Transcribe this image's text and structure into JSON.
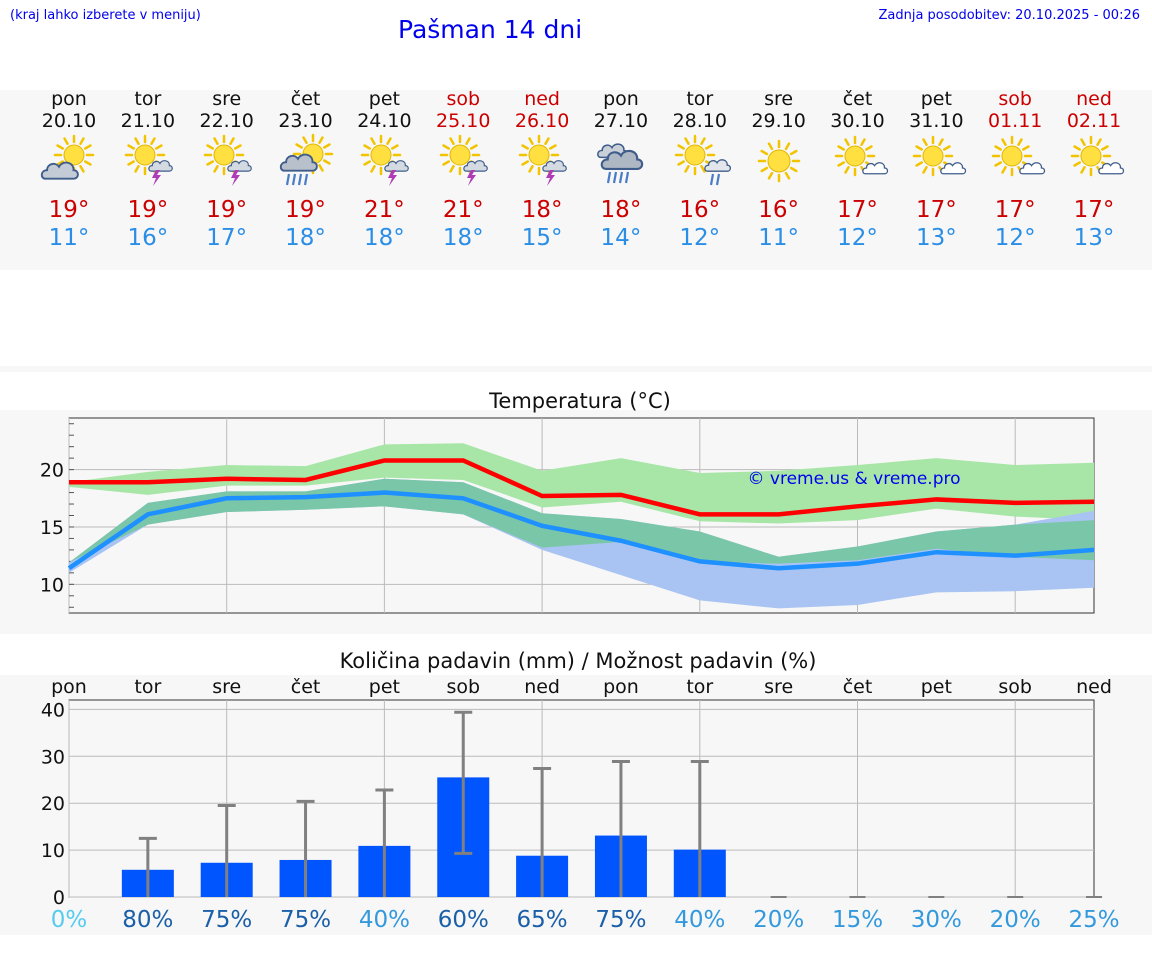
{
  "header": {
    "menu_hint": "(kraj lahko izberete v meniju)",
    "title": "Pašman 14 dni",
    "updated": "Zadnja posodobitev: 20.10.2025 - 00:26"
  },
  "days": [
    {
      "name": "pon",
      "date": "20.10",
      "weekend": false,
      "icon": "sun-cloud-icon",
      "max": "19°",
      "min": "11°"
    },
    {
      "name": "tor",
      "date": "21.10",
      "weekend": false,
      "icon": "sun-storm-icon",
      "max": "19°",
      "min": "16°"
    },
    {
      "name": "sre",
      "date": "22.10",
      "weekend": false,
      "icon": "sun-storm-icon",
      "max": "19°",
      "min": "17°"
    },
    {
      "name": "čet",
      "date": "23.10",
      "weekend": false,
      "icon": "sun-rain-heavy-icon",
      "max": "19°",
      "min": "18°"
    },
    {
      "name": "pet",
      "date": "24.10",
      "weekend": false,
      "icon": "sun-storm-icon",
      "max": "21°",
      "min": "18°"
    },
    {
      "name": "sob",
      "date": "25.10",
      "weekend": true,
      "icon": "sun-storm-icon",
      "max": "21°",
      "min": "18°"
    },
    {
      "name": "ned",
      "date": "26.10",
      "weekend": true,
      "icon": "sun-storm-icon",
      "max": "18°",
      "min": "15°"
    },
    {
      "name": "pon",
      "date": "27.10",
      "weekend": false,
      "icon": "cloud-rain-icon",
      "max": "18°",
      "min": "14°"
    },
    {
      "name": "tor",
      "date": "28.10",
      "weekend": false,
      "icon": "sun-cloud-rain-icon",
      "max": "16°",
      "min": "12°"
    },
    {
      "name": "sre",
      "date": "29.10",
      "weekend": false,
      "icon": "sun-icon",
      "max": "16°",
      "min": "11°"
    },
    {
      "name": "čet",
      "date": "30.10",
      "weekend": false,
      "icon": "sun-small-cloud-icon",
      "max": "17°",
      "min": "12°"
    },
    {
      "name": "pet",
      "date": "31.10",
      "weekend": false,
      "icon": "sun-small-cloud-icon",
      "max": "17°",
      "min": "13°"
    },
    {
      "name": "sob",
      "date": "01.11",
      "weekend": true,
      "icon": "sun-small-cloud-icon",
      "max": "17°",
      "min": "12°"
    },
    {
      "name": "ned",
      "date": "02.11",
      "weekend": true,
      "icon": "sun-small-cloud-icon",
      "max": "17°",
      "min": "13°"
    }
  ],
  "colors": {
    "max_line": "#ff0000",
    "min_line": "#1e90ff",
    "max_band": "#a8e6a8",
    "min_band": "#a9c4f2",
    "overlap_band": "#7ac6a8",
    "bar": "#0055ff",
    "error": "#808080",
    "weekend": "#cc0000",
    "chance_low": "#55ccee",
    "chance_mid": "#3399dd",
    "chance_high": "#1a5fa8"
  },
  "chart_data": [
    {
      "type": "line",
      "title": "Temperatura (°C)",
      "watermark": "© vreme.us & vreme.pro",
      "x": [
        "20.10",
        "21.10",
        "22.10",
        "23.10",
        "24.10",
        "25.10",
        "26.10",
        "27.10",
        "28.10",
        "29.10",
        "30.10",
        "31.10",
        "01.11",
        "02.11"
      ],
      "ylim": [
        7.5,
        24.5
      ],
      "yticks": [
        10,
        15,
        20
      ],
      "grid": true,
      "series": [
        {
          "role": "max",
          "values": [
            18.9,
            18.9,
            19.2,
            19.1,
            20.8,
            20.8,
            17.7,
            17.8,
            16.1,
            16.1,
            16.8,
            17.4,
            17.1,
            17.2
          ]
        },
        {
          "role": "min",
          "values": [
            11.4,
            16.1,
            17.5,
            17.6,
            18.0,
            17.5,
            15.1,
            13.8,
            12.0,
            11.4,
            11.8,
            12.8,
            12.5,
            13.0
          ]
        }
      ],
      "bands": [
        {
          "role": "max_range",
          "upper": [
            18.9,
            19.8,
            20.4,
            20.3,
            22.2,
            22.3,
            19.9,
            21.0,
            19.7,
            19.9,
            20.4,
            21.0,
            20.4,
            20.6
          ],
          "lower": [
            18.5,
            17.8,
            18.6,
            18.6,
            19.3,
            19.1,
            16.7,
            17.2,
            15.5,
            15.3,
            15.6,
            16.6,
            15.9,
            15.6
          ]
        },
        {
          "role": "min_range",
          "upper": [
            11.9,
            17.1,
            18.1,
            18.1,
            19.2,
            18.9,
            16.2,
            15.7,
            14.6,
            12.4,
            13.3,
            14.6,
            15.2,
            16.4
          ]
        },
        {
          "role": "min_range_lower",
          "values": [
            11.0,
            15.2,
            16.3,
            16.5,
            16.8,
            16.1,
            13.0,
            10.8,
            8.6,
            7.9,
            8.2,
            9.3,
            9.4,
            9.7
          ]
        }
      ]
    },
    {
      "type": "bar",
      "title": "Količina padavin (mm) / Možnost padavin (%)",
      "categories": [
        "pon",
        "tor",
        "sre",
        "čet",
        "pet",
        "sob",
        "ned",
        "pon",
        "tor",
        "sre",
        "čet",
        "pet",
        "sob",
        "ned"
      ],
      "ylim": [
        0,
        42
      ],
      "yticks": [
        0,
        10,
        20,
        30,
        40
      ],
      "grid": true,
      "values": [
        0,
        5.8,
        7.3,
        7.9,
        10.9,
        25.5,
        8.8,
        13.1,
        10.1,
        0,
        0,
        0,
        0,
        0
      ],
      "error_high": [
        0,
        12.5,
        19.5,
        20.4,
        22.8,
        39.4,
        27.4,
        28.9,
        28.9,
        0,
        0,
        0,
        0,
        0
      ],
      "error_low": [
        0,
        0,
        0,
        0,
        0,
        9.3,
        0,
        0,
        0,
        0,
        0,
        0,
        0,
        0
      ],
      "chances": [
        "0%",
        "80%",
        "75%",
        "75%",
        "40%",
        "60%",
        "65%",
        "75%",
        "40%",
        "20%",
        "15%",
        "30%",
        "20%",
        "25%"
      ],
      "chance_levels": [
        "low",
        "high",
        "high",
        "high",
        "mid",
        "high",
        "high",
        "high",
        "mid",
        "mid",
        "mid",
        "mid",
        "mid",
        "mid"
      ]
    }
  ]
}
